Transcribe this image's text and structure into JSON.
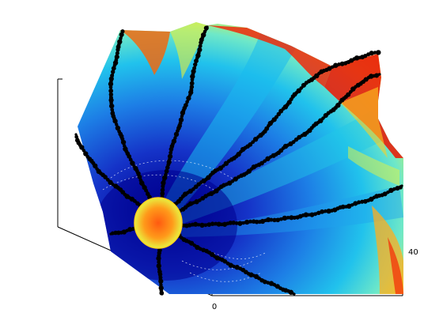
{
  "chart_data": {
    "type": "surface3d",
    "title": "",
    "xlabel": "",
    "ylabel": "",
    "zlabel": "",
    "colormap": "jet",
    "grid": false,
    "legend": "none",
    "tick_labels": {
      "x": [
        "0"
      ],
      "y": [
        "40"
      ]
    },
    "paths": {
      "count": 9,
      "color": "#000000",
      "marker": "circle"
    }
  }
}
